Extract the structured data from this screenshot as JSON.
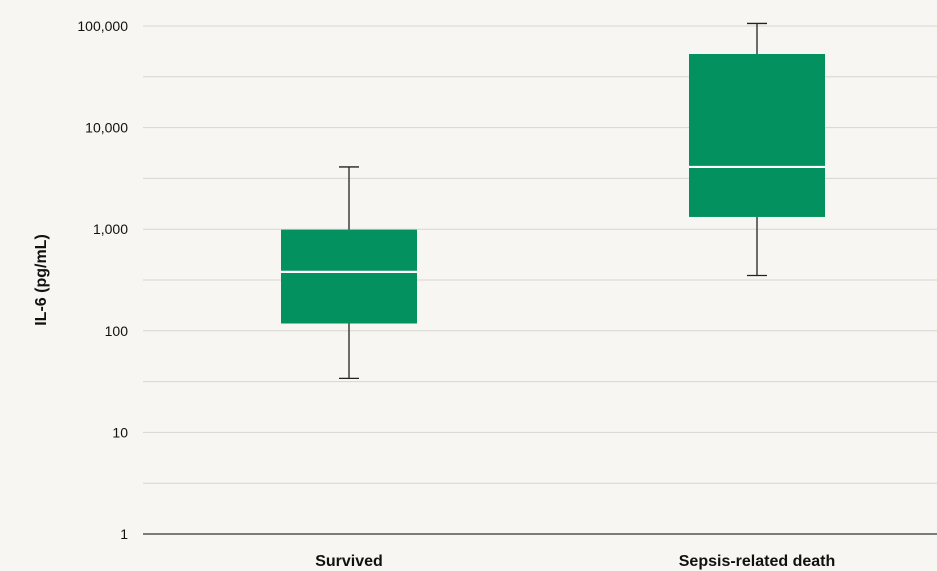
{
  "chart_data": {
    "type": "box",
    "ylabel": "IL-6 (pg/mL)",
    "yscale": "log",
    "ylim": [
      1,
      100000
    ],
    "yticks": [
      1,
      10,
      100,
      1000,
      10000,
      100000
    ],
    "ytick_labels": [
      "1",
      "10",
      "100",
      "1,000",
      "10,000",
      "100,000"
    ],
    "grid": true,
    "categories": [
      "Survived",
      "Sepsis-related death"
    ],
    "boxes": [
      {
        "category": "Survived",
        "whisker_low": 34,
        "q1": 118,
        "median": 380,
        "q3": 990,
        "whisker_high": 4100
      },
      {
        "category": "Sepsis-related death",
        "whisker_low": 350,
        "q1": 1320,
        "median": 4100,
        "q3": 53000,
        "whisker_high": 106000
      }
    ],
    "colors": {
      "box": "#02915f",
      "median_line": "#ffffff",
      "whisker": "#222222",
      "grid": "#d8d6d0",
      "axis": "#333333"
    }
  }
}
